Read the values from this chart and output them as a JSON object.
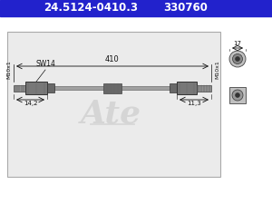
{
  "title1": "24.5124-0410.3",
  "title2": "330760",
  "title_bg": "#2222cc",
  "title_fg": "#ffffff",
  "bg_color": "#ffffff",
  "diagram_bg": "#eeeeee",
  "left_thread": "M10x1",
  "right_thread": "M10x1",
  "sw_label": "SW14",
  "dim_14_2": "14,2",
  "dim_11_3": "11,3",
  "dim_17": "17",
  "dim_410": "410",
  "hose_color": "#909090",
  "nut_color": "#787878",
  "connector_color": "#686868",
  "dim_color": "#111111",
  "ate_color": "#cccccc"
}
